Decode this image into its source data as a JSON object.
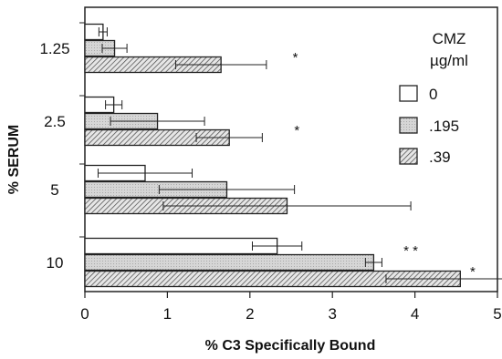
{
  "chart_data": {
    "type": "bar",
    "orientation": "horizontal",
    "xlabel": "% C3 Specifically Bound",
    "ylabel": "% SERUM",
    "xlim": [
      0,
      5
    ],
    "x_ticks": [
      0,
      1,
      2,
      3,
      4,
      5
    ],
    "x_tick_labels": [
      "0",
      "1",
      "2",
      "3",
      "4",
      "5"
    ],
    "categories": [
      "1.25",
      "2.5",
      "5",
      "10"
    ],
    "legend_title_line1": "CMZ",
    "legend_title_line2": "µg/ml",
    "legend_position": "right",
    "series": [
      {
        "name": "0",
        "fill": "white",
        "values": [
          0.22,
          0.35,
          0.73,
          2.33
        ],
        "error": [
          0.05,
          0.1,
          0.57,
          0.3
        ]
      },
      {
        "name": ".195",
        "fill": "lightgray",
        "values": [
          0.36,
          0.88,
          1.72,
          3.5
        ],
        "error": [
          0.15,
          0.57,
          0.82,
          0.1
        ]
      },
      {
        "name": ".39",
        "fill": "hatched",
        "values": [
          1.65,
          1.75,
          2.45,
          4.55
        ],
        "error": [
          0.55,
          0.4,
          1.5,
          0.9
        ]
      }
    ],
    "annotations": [
      {
        "category": "1.25",
        "text": "*",
        "x": 2.55
      },
      {
        "category": "2.5",
        "text": "*",
        "x": 2.57
      },
      {
        "category": "10",
        "text": "* *",
        "x": 3.95
      },
      {
        "category": "10",
        "text": "*",
        "x": 4.7
      }
    ]
  }
}
